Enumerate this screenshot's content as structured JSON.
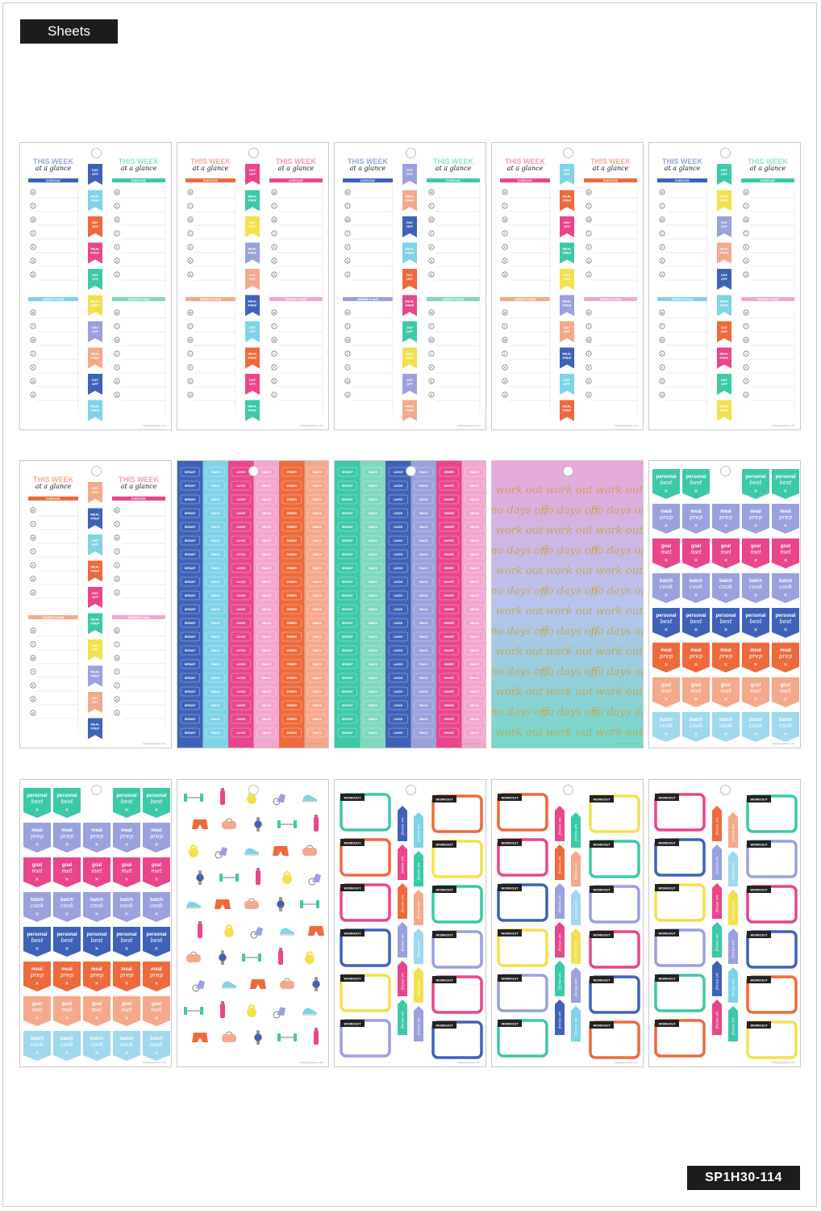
{
  "header": {
    "label": "Sheets"
  },
  "footer": {
    "sku": "SP1H30-114"
  },
  "colors": {
    "blue": "#3f62b8",
    "aqua": "#7fd3e8",
    "orange": "#ee6a3c",
    "pink": "#e9458c",
    "teal": "#3cc9a8",
    "yellow": "#f2e14c",
    "lavender": "#9aa1dd",
    "peach": "#f4a98c",
    "lightpink": "#f3a6cf",
    "skyblue": "#9fd8ef",
    "mint": "#7fd8bf",
    "gold": "#c9a24a"
  },
  "weekly": {
    "title_top": "THIS WEEK",
    "title_script": "at a glance",
    "exercise_label": "EXERCISE",
    "dinner_label": "DINNER PLANS",
    "days": [
      "M",
      "T",
      "W",
      "T",
      "F",
      "S",
      "S"
    ],
    "flag_day_off": "DAY OFF",
    "flag_meal_prep": "MEAL PREP"
  },
  "meal_labels": [
    "BREAKFAST",
    "SNACK",
    "LUNCH",
    "SNACK",
    "DINNER",
    "SNACK"
  ],
  "workout_words": [
    "work out",
    "no days off"
  ],
  "badge_words": [
    "personal best",
    "meal prep",
    "goal met",
    "batch cook",
    "personal best",
    "meal prep",
    "goal met",
    "batch cook"
  ],
  "workout_box_label": "WORKOUT",
  "focus_label": "focus on",
  "site_credit": "thehappyplanner.com"
}
